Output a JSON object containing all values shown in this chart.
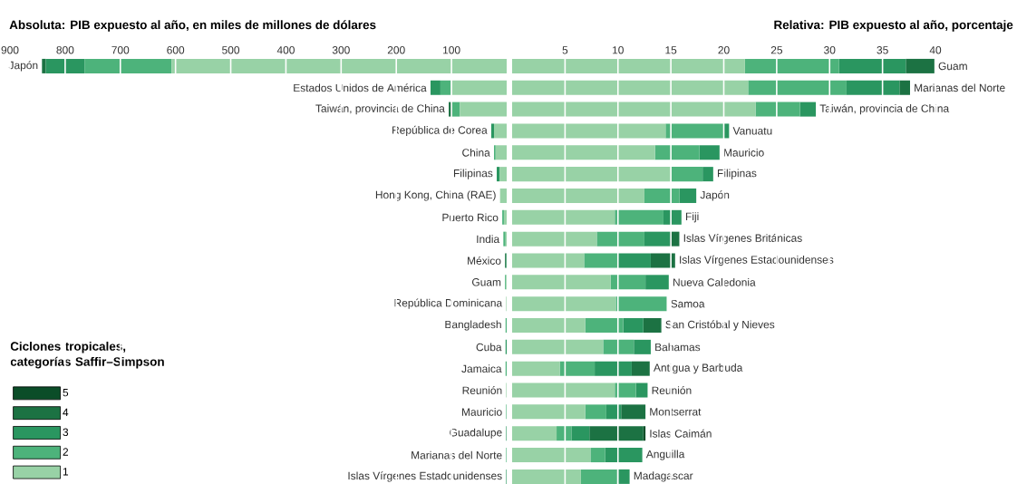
{
  "chart_data": [
    {
      "type": "bar",
      "orientation": "horizontal",
      "stacked": true,
      "title": "Absoluta: PIB expuesto al año, en miles de millones de dólares",
      "legend_title": "Ciclones tropicales, categorías Saffir–Simpson",
      "legend": "bottom left",
      "grid": "x",
      "tick_labels": "x",
      "categories": [
        "Japón",
        "Estados Unidos de América",
        "Taiwán, provincia de China",
        "República de Corea",
        "China",
        "Filipinas",
        "Hong Kong, China (RAE)",
        "Puerto Rico",
        "India",
        "México",
        "Guam",
        "República Dominicana",
        "Bangladesh",
        "Cuba",
        "Jamaica",
        "Reunión",
        "Mauricio",
        "Guadalupe",
        "Marianas del Norte",
        "Islas Vírgenes Estadounidenses"
      ],
      "xlim": [
        900,
        0
      ],
      "xticks": [
        900,
        800,
        700,
        600,
        500,
        400,
        300,
        200,
        100
      ],
      "series": [
        {
          "name": "1",
          "color": "#98d2a6",
          "values": [
            607,
            101,
            85,
            23,
            20,
            13,
            12,
            5,
            2,
            0,
            1,
            1,
            0,
            0,
            0,
            1,
            0,
            0,
            0,
            0
          ]
        },
        {
          "name": "2",
          "color": "#4db37b",
          "values": [
            158,
            19,
            14,
            0,
            3,
            0,
            0,
            3,
            4,
            0,
            2,
            0,
            2,
            0,
            2,
            0,
            1,
            0,
            1,
            0
          ]
        },
        {
          "name": "3",
          "color": "#2a9660",
          "values": [
            70,
            18,
            null,
            5,
            0,
            5,
            0,
            0,
            0,
            1,
            0,
            0,
            0,
            2,
            0,
            0,
            0,
            1,
            0,
            1
          ]
        },
        {
          "name": "4",
          "color": "#1c7243",
          "values": [
            7,
            0,
            6,
            0,
            0,
            0,
            0,
            0,
            0,
            2,
            0,
            0,
            0,
            0,
            0,
            0,
            0,
            0,
            0,
            0
          ]
        },
        {
          "name": "5",
          "color": "#0b4d28",
          "values": [
            0,
            0,
            0,
            0,
            0,
            0,
            0,
            0,
            0,
            0,
            0,
            0,
            0,
            0,
            0,
            0,
            0,
            0,
            0,
            0
          ]
        }
      ]
    },
    {
      "type": "bar",
      "orientation": "horizontal",
      "stacked": true,
      "title": "Relativa: PIB expuesto al año, porcentaje",
      "grid": "x",
      "tick_labels": "x",
      "categories": [
        "Guam",
        "Marianas del Norte",
        "Taiwán, provincia de China",
        "Vanuatu",
        "Mauricio",
        "Filipinas",
        "Japón",
        "Fiji",
        "Islas Vírgenes Británicas",
        "Islas Vírgenes Estadounidenses",
        "Nueva Caledonia",
        "Samoa",
        "San Cristóbal y Nieves",
        "Bahamas",
        "Antigua y Barbuda",
        "Reunión",
        "Montserrat",
        "Islas Caimán",
        "Anguilla",
        "Madagascar"
      ],
      "xlim": [
        0,
        40
      ],
      "xticks": [
        5,
        10,
        15,
        20,
        25,
        30,
        35,
        40
      ],
      "series": [
        {
          "color": "#98d2a6",
          "values": [
            22.0,
            22.3,
            23.0,
            14.5,
            13.5,
            15.0,
            12.5,
            9.7,
            8.0,
            6.8,
            9.3,
            9.8,
            6.9,
            8.6,
            4.5,
            9.7,
            6.9,
            4.2,
            7.4,
            6.5
          ]
        },
        {
          "color": "#4db37b",
          "values": [
            8.9,
            9.3,
            4.2,
            5.5,
            4.2,
            3.0,
            3.3,
            4.6,
            4.5,
            3.2,
            3.3,
            4.8,
            3.6,
            2.9,
            3.3,
            2.0,
            2.0,
            1.4,
            1.4,
            3.4
          ]
        },
        {
          "color": "#2a9660",
          "values": [
            6.3,
            5.0,
            1.5,
            0.5,
            1.9,
            1.0,
            1.6,
            1.7,
            2.4,
            3.1,
            2.2,
            0,
            1.9,
            1.6,
            3.5,
            1.1,
            1.4,
            1.7,
            3.5,
            1.2
          ]
        },
        {
          "color": "#1c7243",
          "values": [
            2.7,
            1.0,
            0,
            0,
            0,
            0,
            0,
            0,
            0.9,
            2.3,
            0,
            0,
            1.7,
            0,
            1.7,
            0,
            2.3,
            5.1,
            0,
            0
          ]
        },
        {
          "color": "#0b4d28",
          "values": [
            0,
            0,
            0,
            0,
            0,
            0,
            0,
            0,
            0,
            0,
            0,
            0,
            0,
            0,
            0,
            0,
            0,
            0.2,
            0,
            0
          ]
        }
      ]
    }
  ]
}
